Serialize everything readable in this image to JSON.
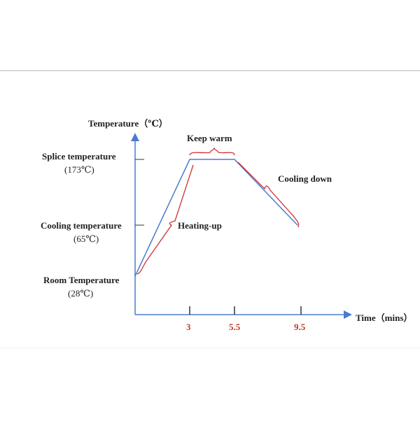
{
  "axes": {
    "y_label": "Temperature（℃）",
    "x_label": "Time（mins）"
  },
  "levels": [
    {
      "label": "Splice temperature",
      "value": "(173℃)"
    },
    {
      "label": "Cooling temperature",
      "value": "(65℃)"
    },
    {
      "label": "Room Temperature",
      "value": "(28℃)"
    }
  ],
  "phases": [
    "Keep warm",
    "Heating-up",
    "Cooling down"
  ],
  "time_ticks": [
    "3",
    "5.5",
    "9.5"
  ]
}
